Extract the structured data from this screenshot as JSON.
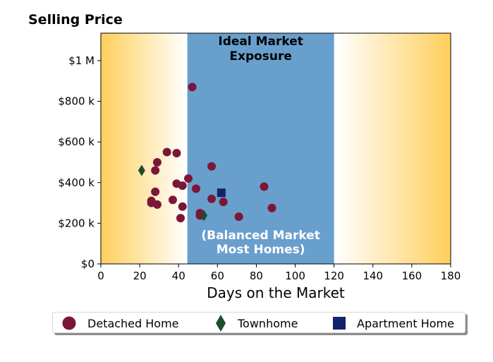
{
  "chart_data": {
    "type": "scatter",
    "title": "Selling Price",
    "xlabel": "Days on the Market",
    "ylabel": "",
    "xlim": [
      0,
      180
    ],
    "ylim": [
      0,
      1000000
    ],
    "x_ticks": [
      0,
      20,
      40,
      60,
      80,
      100,
      120,
      140,
      160,
      180
    ],
    "x_tick_labels": [
      "0",
      "20",
      "40",
      "60",
      "80",
      "100",
      "120",
      "140",
      "160",
      "180"
    ],
    "y_ticks": [
      0,
      200000,
      400000,
      600000,
      800000,
      1000000
    ],
    "y_tick_labels": [
      "$0",
      "$200 k",
      "$400 k",
      "$600 k",
      "$800 k",
      "$1 M"
    ],
    "grid": false,
    "legend_position": "bottom",
    "band": {
      "x_start": 44.5,
      "x_end": 120,
      "color": "#699fcd",
      "top_label": [
        "Ideal Market",
        "Exposure"
      ],
      "bottom_label": [
        "(Balanced Market",
        "Most Homes)"
      ]
    },
    "background_gradient": {
      "edge_color": "#ffcf5c",
      "center_color": "#ffffff"
    },
    "series": [
      {
        "name": "Detached Home",
        "marker": "circle",
        "color": "#7b1736",
        "points": [
          [
            47,
            870000
          ],
          [
            34,
            550000
          ],
          [
            39,
            545000
          ],
          [
            29,
            500000
          ],
          [
            57,
            480000
          ],
          [
            28,
            460000
          ],
          [
            45,
            420000
          ],
          [
            39,
            395000
          ],
          [
            42,
            385000
          ],
          [
            49,
            370000
          ],
          [
            84,
            380000
          ],
          [
            28,
            355000
          ],
          [
            37,
            315000
          ],
          [
            57,
            320000
          ],
          [
            26,
            310000
          ],
          [
            26,
            300000
          ],
          [
            29,
            292000
          ],
          [
            42,
            282000
          ],
          [
            63,
            305000
          ],
          [
            88,
            275000
          ],
          [
            51,
            250000
          ],
          [
            51,
            238000
          ],
          [
            41,
            225000
          ],
          [
            71,
            232000
          ]
        ]
      },
      {
        "name": "Townhome",
        "marker": "diamond",
        "color": "#1e4d2b",
        "points": [
          [
            21,
            460000
          ],
          [
            53,
            238000
          ]
        ]
      },
      {
        "name": "Apartment Home",
        "marker": "square",
        "color": "#14216b",
        "points": [
          [
            62,
            350000
          ]
        ]
      }
    ]
  }
}
